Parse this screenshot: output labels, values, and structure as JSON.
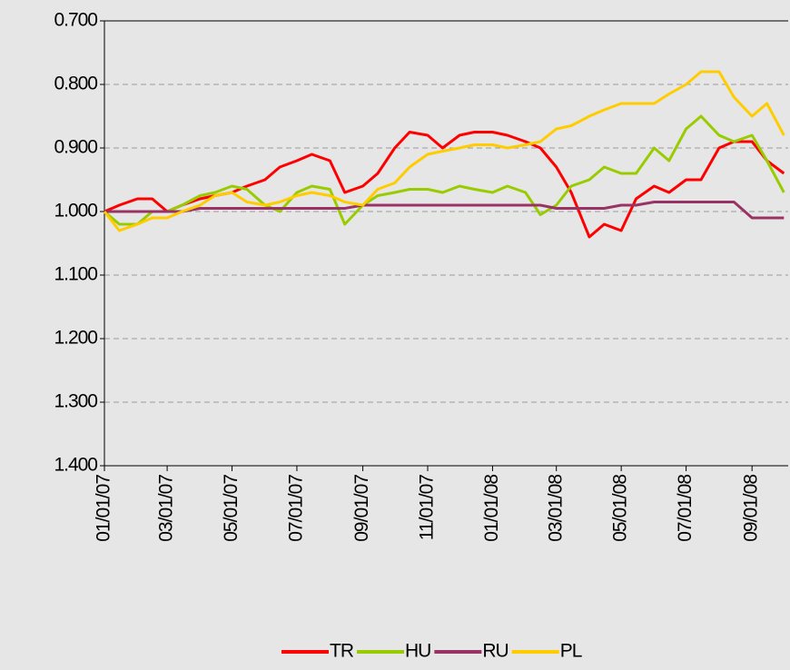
{
  "chart_data": {
    "type": "line",
    "x": [
      "2007-01-01",
      "2007-01-15",
      "2007-02-01",
      "2007-02-15",
      "2007-03-01",
      "2007-03-15",
      "2007-04-01",
      "2007-04-15",
      "2007-05-01",
      "2007-05-15",
      "2007-06-01",
      "2007-06-15",
      "2007-07-01",
      "2007-07-15",
      "2007-08-01",
      "2007-08-15",
      "2007-09-01",
      "2007-09-15",
      "2007-10-01",
      "2007-10-15",
      "2007-11-01",
      "2007-11-15",
      "2007-12-01",
      "2007-12-15",
      "2008-01-01",
      "2008-01-15",
      "2008-02-01",
      "2008-02-15",
      "2008-03-01",
      "2008-03-15",
      "2008-04-01",
      "2008-04-15",
      "2008-05-01",
      "2008-05-15",
      "2008-06-01",
      "2008-06-15",
      "2008-07-01",
      "2008-07-15",
      "2008-08-01",
      "2008-08-15",
      "2008-09-01",
      "2008-09-15",
      "2008-10-01"
    ],
    "series": [
      {
        "name": "TR",
        "color": "#ff0000",
        "values": [
          1.0,
          0.99,
          0.98,
          0.98,
          1.0,
          0.99,
          0.98,
          0.975,
          0.97,
          0.96,
          0.95,
          0.93,
          0.92,
          0.91,
          0.92,
          0.97,
          0.96,
          0.94,
          0.9,
          0.875,
          0.88,
          0.9,
          0.88,
          0.875,
          0.875,
          0.88,
          0.89,
          0.9,
          0.93,
          0.97,
          1.04,
          1.02,
          1.03,
          0.98,
          0.96,
          0.97,
          0.95,
          0.95,
          0.9,
          0.89,
          0.89,
          0.92,
          0.94
        ]
      },
      {
        "name": "HU",
        "color": "#99cc00",
        "values": [
          1.0,
          1.02,
          1.02,
          1.0,
          1.0,
          0.99,
          0.975,
          0.97,
          0.96,
          0.965,
          0.99,
          1.0,
          0.97,
          0.96,
          0.965,
          1.02,
          0.99,
          0.975,
          0.97,
          0.965,
          0.965,
          0.97,
          0.96,
          0.965,
          0.97,
          0.96,
          0.97,
          1.005,
          0.99,
          0.96,
          0.95,
          0.93,
          0.94,
          0.94,
          0.9,
          0.92,
          0.87,
          0.85,
          0.88,
          0.89,
          0.88,
          0.92,
          0.97
        ]
      },
      {
        "name": "RU",
        "color": "#993366",
        "values": [
          1.0,
          1.0,
          1.0,
          1.0,
          1.0,
          1.0,
          0.995,
          0.995,
          0.995,
          0.995,
          0.995,
          0.995,
          0.995,
          0.995,
          0.995,
          0.995,
          0.99,
          0.99,
          0.99,
          0.99,
          0.99,
          0.99,
          0.99,
          0.99,
          0.99,
          0.99,
          0.99,
          0.99,
          0.995,
          0.995,
          0.995,
          0.995,
          0.99,
          0.99,
          0.985,
          0.985,
          0.985,
          0.985,
          0.985,
          0.985,
          1.01,
          1.01,
          1.01
        ]
      },
      {
        "name": "PL",
        "color": "#ffcc00",
        "values": [
          1.0,
          1.03,
          1.02,
          1.01,
          1.01,
          1.0,
          0.99,
          0.975,
          0.97,
          0.985,
          0.99,
          0.985,
          0.975,
          0.97,
          0.975,
          0.985,
          0.99,
          0.965,
          0.955,
          0.93,
          0.91,
          0.905,
          0.9,
          0.895,
          0.895,
          0.9,
          0.895,
          0.89,
          0.87,
          0.865,
          0.85,
          0.84,
          0.83,
          0.83,
          0.83,
          0.815,
          0.8,
          0.78,
          0.78,
          0.82,
          0.85,
          0.83,
          0.88
        ]
      }
    ],
    "xlim": [
      "2007-01-01",
      "2008-10-05"
    ],
    "xticks": [
      {
        "value": "2007-01-01",
        "label": "01/01/07"
      },
      {
        "value": "2007-03-01",
        "label": "03/01/07"
      },
      {
        "value": "2007-05-01",
        "label": "05/01/07"
      },
      {
        "value": "2007-07-01",
        "label": "07/01/07"
      },
      {
        "value": "2007-09-01",
        "label": "09/01/07"
      },
      {
        "value": "2007-11-01",
        "label": "11/01/07"
      },
      {
        "value": "2008-01-01",
        "label": "01/01/08"
      },
      {
        "value": "2008-03-01",
        "label": "03/01/08"
      },
      {
        "value": "2008-05-01",
        "label": "05/01/08"
      },
      {
        "value": "2008-07-01",
        "label": "07/01/08"
      },
      {
        "value": "2008-09-01",
        "label": "09/01/08"
      }
    ],
    "ylim": [
      1.4,
      0.7
    ],
    "yticks": [
      {
        "value": 0.7,
        "label": "0.700"
      },
      {
        "value": 0.8,
        "label": "0.800"
      },
      {
        "value": 0.9,
        "label": "0.900"
      },
      {
        "value": 1.0,
        "label": "1.000"
      },
      {
        "value": 1.1,
        "label": "1.100"
      },
      {
        "value": 1.2,
        "label": "1.200"
      },
      {
        "value": 1.3,
        "label": "1.300"
      },
      {
        "value": 1.4,
        "label": "1.400"
      }
    ],
    "grid": true,
    "legend": "bottom"
  }
}
